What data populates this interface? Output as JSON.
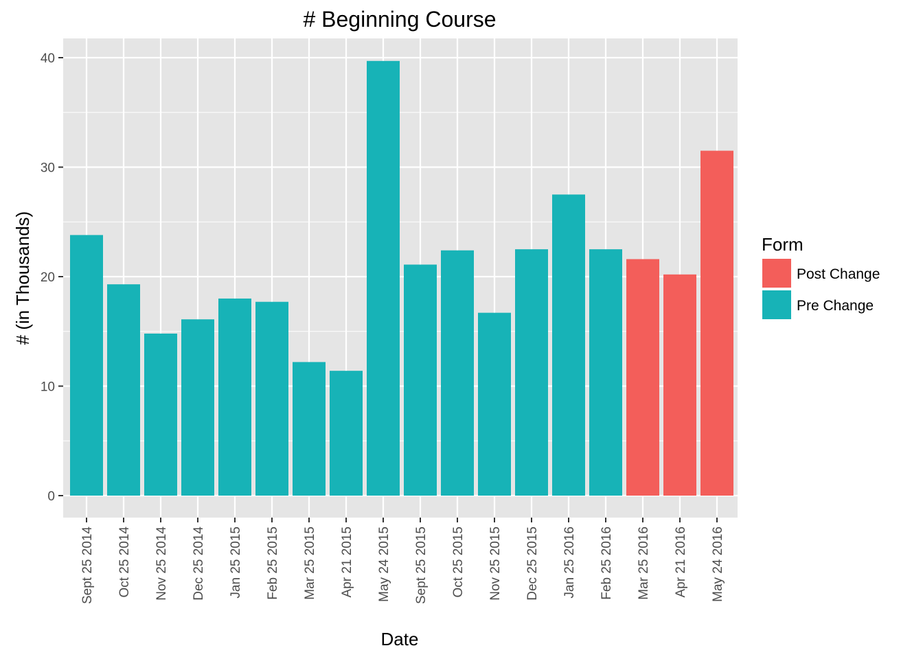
{
  "chart_data": {
    "type": "bar",
    "title": "# Beginning Course",
    "xlabel": "Date",
    "ylabel": "# (in Thousands)",
    "ylim": [
      0,
      40
    ],
    "yticks": [
      "0",
      "10",
      "20",
      "30",
      "40"
    ],
    "grid": true,
    "legend_position": "right",
    "legend_title": "Form",
    "categories": [
      "Sept 25 2014",
      "Oct 25 2014",
      "Nov 25 2014",
      "Dec 25 2014",
      "Jan 25 2015",
      "Feb 25 2015",
      "Mar 25 2015",
      "Apr 21 2015",
      "May 24 2015",
      "Sept 25 2015",
      "Oct 25 2015",
      "Nov 25 2015",
      "Dec 25 2015",
      "Jan 25 2016",
      "Feb 25 2016",
      "Mar 25 2016",
      "Apr 21 2016",
      "May 24 2016"
    ],
    "values": [
      23.8,
      19.3,
      14.8,
      16.1,
      18.0,
      17.7,
      12.2,
      11.4,
      39.7,
      21.1,
      22.4,
      16.7,
      22.5,
      27.5,
      22.5,
      21.6,
      20.2,
      31.5
    ],
    "groups": [
      "Pre Change",
      "Pre Change",
      "Pre Change",
      "Pre Change",
      "Pre Change",
      "Pre Change",
      "Pre Change",
      "Pre Change",
      "Pre Change",
      "Pre Change",
      "Pre Change",
      "Pre Change",
      "Pre Change",
      "Pre Change",
      "Pre Change",
      "Post Change",
      "Post Change",
      "Post Change"
    ],
    "legend": [
      {
        "name": "Post Change",
        "color": "#F35E5A"
      },
      {
        "name": "Pre Change",
        "color": "#17B3B7"
      }
    ],
    "colors": {
      "panel_background": "#E5E5E5",
      "grid": "#FFFFFF"
    }
  }
}
